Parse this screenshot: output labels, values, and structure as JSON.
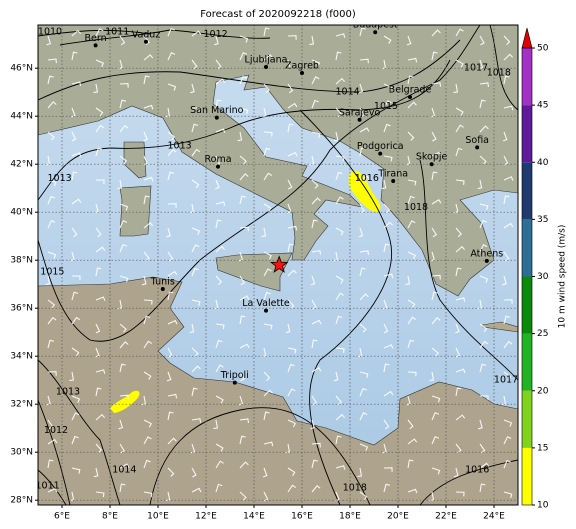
{
  "title": "Forecast of 2020092218 (f000)",
  "map": {
    "lon_range": [
      5,
      25
    ],
    "lat_range": [
      27.8,
      47.8
    ],
    "lon_ticks": [
      {
        "value": 6,
        "label": "6°E"
      },
      {
        "value": 8,
        "label": "8°E"
      },
      {
        "value": 10,
        "label": "10°E"
      },
      {
        "value": 12,
        "label": "12°E"
      },
      {
        "value": 14,
        "label": "14°E"
      },
      {
        "value": 16,
        "label": "16°E"
      },
      {
        "value": 18,
        "label": "18°E"
      },
      {
        "value": 20,
        "label": "20°E"
      },
      {
        "value": 22,
        "label": "22°E"
      },
      {
        "value": 24,
        "label": "24°E"
      }
    ],
    "lat_ticks": [
      {
        "value": 28,
        "label": "28°N"
      },
      {
        "value": 30,
        "label": "30°N"
      },
      {
        "value": 32,
        "label": "32°N"
      },
      {
        "value": 34,
        "label": "34°N"
      },
      {
        "value": 36,
        "label": "36°N"
      },
      {
        "value": 38,
        "label": "38°N"
      },
      {
        "value": 40,
        "label": "40°N"
      },
      {
        "value": 42,
        "label": "42°N"
      },
      {
        "value": 44,
        "label": "44°N"
      },
      {
        "value": 46,
        "label": "46°N"
      }
    ],
    "cities": [
      {
        "name": "Bern",
        "lon": 7.4,
        "lat": 46.95
      },
      {
        "name": "Vaduz",
        "lon": 9.5,
        "lat": 47.1
      },
      {
        "name": "Budapest",
        "lon": 19.05,
        "lat": 47.5
      },
      {
        "name": "Ljubljana",
        "lon": 14.5,
        "lat": 46.05
      },
      {
        "name": "Zagreb",
        "lon": 16.0,
        "lat": 45.8
      },
      {
        "name": "Belgrade",
        "lon": 20.5,
        "lat": 44.8
      },
      {
        "name": "San Marino",
        "lon": 12.45,
        "lat": 43.94
      },
      {
        "name": "Sarajevo",
        "lon": 18.4,
        "lat": 43.85
      },
      {
        "name": "Roma",
        "lon": 12.5,
        "lat": 41.9
      },
      {
        "name": "Podgorica",
        "lon": 19.26,
        "lat": 42.44
      },
      {
        "name": "Skopje",
        "lon": 21.4,
        "lat": 42.0
      },
      {
        "name": "Sofia",
        "lon": 23.3,
        "lat": 42.7
      },
      {
        "name": "Tirana",
        "lon": 19.8,
        "lat": 41.3
      },
      {
        "name": "Athens",
        "lon": 23.7,
        "lat": 37.97
      },
      {
        "name": "Tunis",
        "lon": 10.2,
        "lat": 36.8
      },
      {
        "name": "La Valette",
        "lon": 14.5,
        "lat": 35.9
      },
      {
        "name": "Tripoli",
        "lon": 13.2,
        "lat": 32.9
      }
    ],
    "isobar_labels": [
      {
        "level": 1010,
        "lon": 5.5,
        "lat": 47.5
      },
      {
        "level": 1011,
        "lon": 8.3,
        "lat": 47.5
      },
      {
        "level": 1012,
        "lon": 12.4,
        "lat": 47.4
      },
      {
        "level": 1014,
        "lon": 17.9,
        "lat": 45.0
      },
      {
        "level": 1015,
        "lon": 19.5,
        "lat": 44.4
      },
      {
        "level": 1013,
        "lon": 10.9,
        "lat": 42.75
      },
      {
        "level": 1013,
        "lon": 5.9,
        "lat": 41.4
      },
      {
        "level": 1016,
        "lon": 18.7,
        "lat": 41.4
      },
      {
        "level": 1017,
        "lon": 23.25,
        "lat": 46.0
      },
      {
        "level": 1018,
        "lon": 24.2,
        "lat": 45.8
      },
      {
        "level": 1018,
        "lon": 20.75,
        "lat": 40.2
      },
      {
        "level": 1015,
        "lon": 5.6,
        "lat": 37.5
      },
      {
        "level": 1013,
        "lon": 6.25,
        "lat": 32.5
      },
      {
        "level": 1012,
        "lon": 5.75,
        "lat": 30.9
      },
      {
        "level": 1014,
        "lon": 8.6,
        "lat": 29.25
      },
      {
        "level": 1011,
        "lon": 5.4,
        "lat": 28.6
      },
      {
        "level": 1018,
        "lon": 18.2,
        "lat": 28.5
      },
      {
        "level": 1016,
        "lon": 23.3,
        "lat": 29.25
      },
      {
        "level": 1017,
        "lon": 24.5,
        "lat": 33.0
      }
    ],
    "storm": {
      "lon": 15.05,
      "lat": 37.8,
      "color": "#ff1010"
    }
  },
  "colorbar": {
    "label": "10 m wind speed (m/s)",
    "range": [
      10,
      50
    ],
    "ticks": [
      10,
      15,
      20,
      25,
      30,
      35,
      40,
      45,
      50
    ],
    "colors": [
      "#ffff00",
      "#7fd31c",
      "#22b322",
      "#0a8a0a",
      "#2d6e96",
      "#1e3a70",
      "#5f1a9c",
      "#a431c6"
    ],
    "extend_color": "#e00000"
  }
}
